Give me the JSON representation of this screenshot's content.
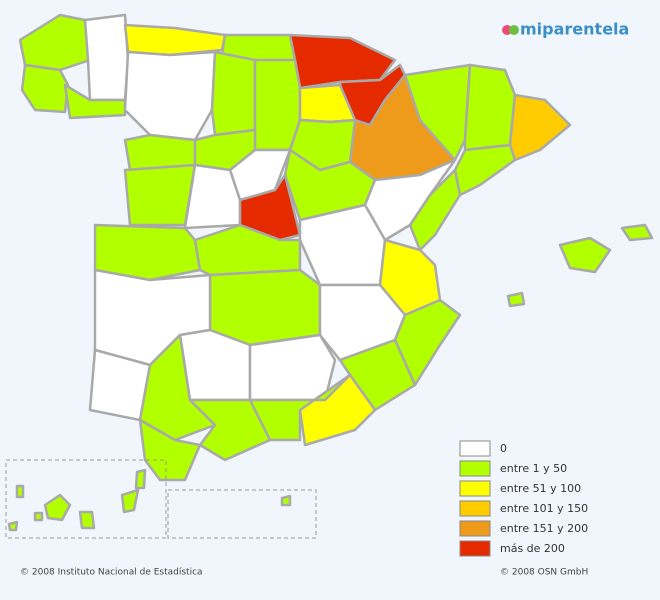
{
  "logo": "miparentela",
  "legend": {
    "items": [
      {
        "label": "0",
        "color": "#ffffff"
      },
      {
        "label": "entre 1 y 50",
        "color": "#b2ff00"
      },
      {
        "label": "entre 51 y 100",
        "color": "#ffff00"
      },
      {
        "label": "entre 101 y 150",
        "color": "#ffcc00"
      },
      {
        "label": "entre 151 y 200",
        "color": "#ee9a1a"
      },
      {
        "label": "más de 200",
        "color": "#e62a00"
      }
    ]
  },
  "footer": {
    "left": "© 2008 Instituto Nacional de Estadística",
    "right": "© 2008 OSN GmbH"
  }
}
